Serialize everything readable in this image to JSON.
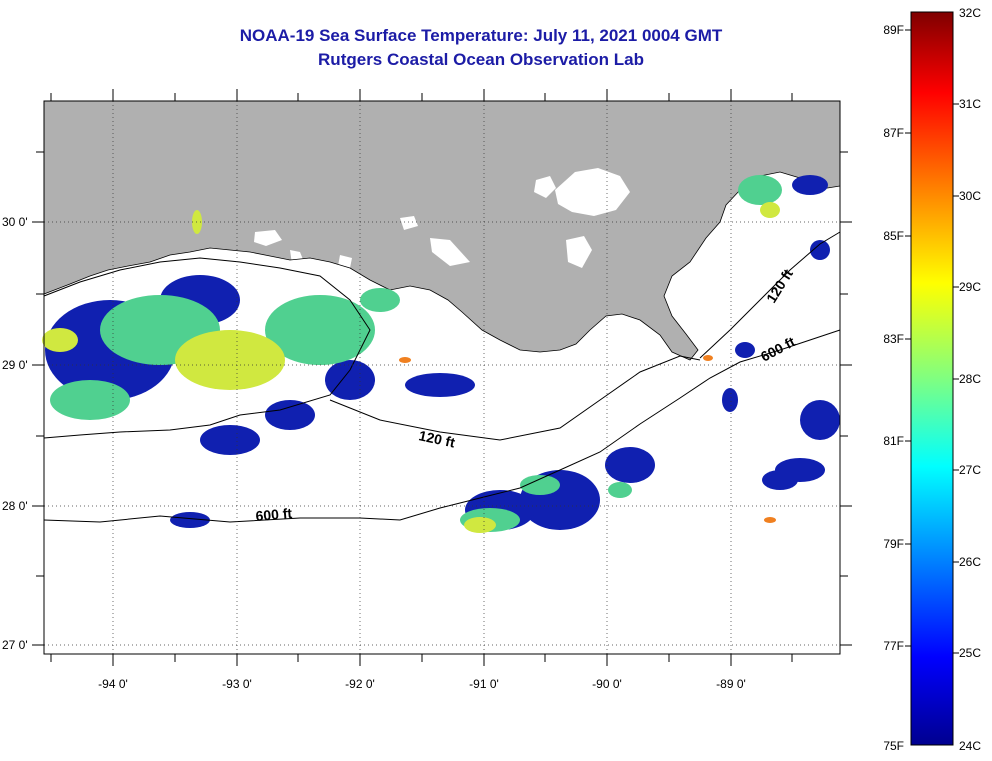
{
  "header": {
    "title": "NOAA-19 Sea Surface Temperature:  July 11, 2021 0004 GMT",
    "subtitle": "Rutgers Coastal Ocean Observation Lab"
  },
  "map": {
    "lat_labels": [
      "30 0'",
      "29 0'",
      "28 0'",
      "27 0'"
    ],
    "lon_labels": [
      "-94 0'",
      "-93 0'",
      "-92 0'",
      "-91 0'",
      "-90 0'",
      "-89 0'"
    ],
    "contour_labels": [
      "120 ft",
      "600 ft",
      "600 ft",
      "120 ft"
    ]
  },
  "colorbar": {
    "fahrenheit_labels": [
      "89F",
      "87F",
      "85F",
      "83F",
      "81F",
      "79F",
      "77F",
      "75F"
    ],
    "celsius_labels": [
      "32C",
      "31C",
      "30C",
      "29C",
      "28C",
      "27C",
      "26C",
      "25C",
      "24C"
    ],
    "colors": [
      "#7f0000",
      "#ff0000",
      "#ff8000",
      "#ffff00",
      "#80ff80",
      "#00ffff",
      "#0080ff",
      "#0000ff",
      "#00008f"
    ]
  }
}
